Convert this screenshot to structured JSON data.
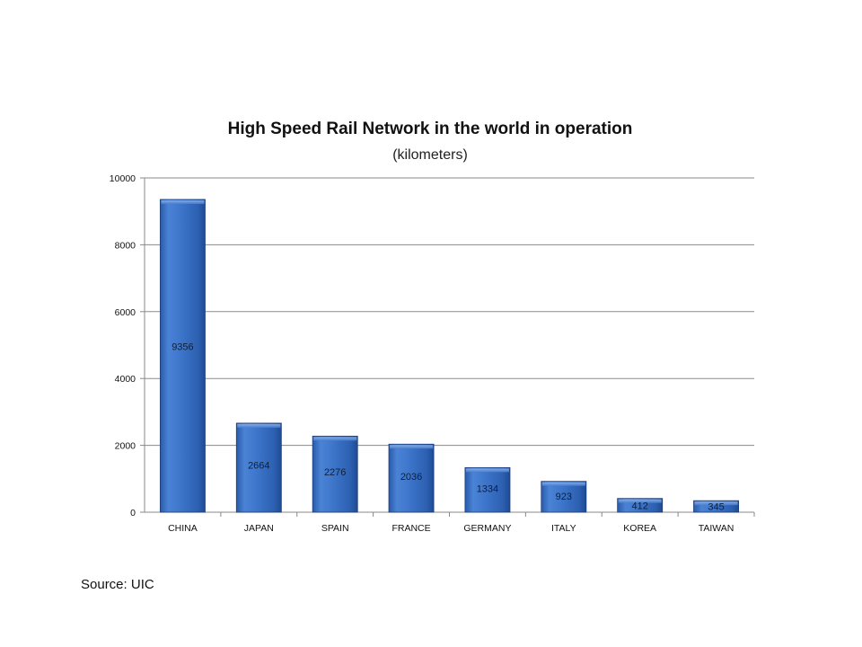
{
  "chart_data": {
    "type": "bar",
    "title": "High Speed Rail Network in the world in operation",
    "subtitle": "(kilometers)",
    "categories": [
      "CHINA",
      "JAPAN",
      "SPAIN",
      "FRANCE",
      "GERMANY",
      "ITALY",
      "KOREA",
      "TAIWAN"
    ],
    "values": [
      9356,
      2664,
      2276,
      2036,
      1334,
      923,
      412,
      345
    ],
    "ylim": [
      0,
      10000
    ],
    "yticks": [
      0,
      2000,
      4000,
      6000,
      8000,
      10000
    ],
    "grid": true,
    "legend": "none",
    "data_labels": true,
    "bar_color": "#3a6fc4"
  },
  "source": "Source: UIC"
}
